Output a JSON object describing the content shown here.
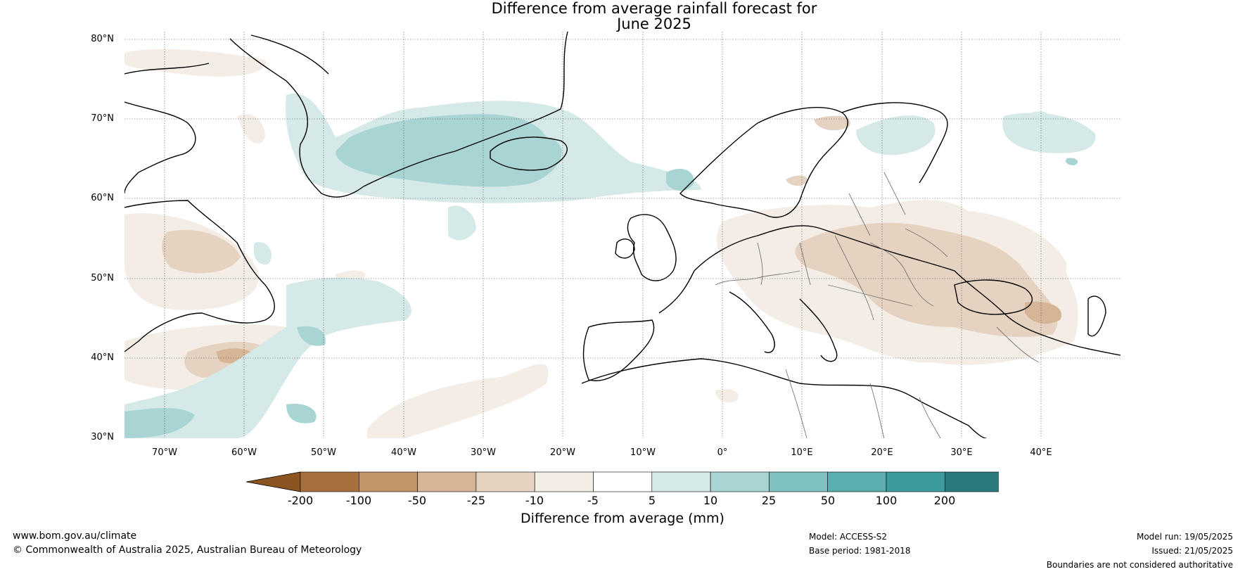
{
  "title_line1": "Difference from average rainfall forecast for",
  "title_line2": "June 2025",
  "lat_labels": [
    "80°N",
    "70°N",
    "60°N",
    "50°N",
    "40°N",
    "30°N"
  ],
  "lon_labels": [
    "70°W",
    "60°W",
    "50°W",
    "40°W",
    "30°W",
    "20°W",
    "10°W",
    "0°",
    "10°E",
    "20°E",
    "30°E",
    "40°E"
  ],
  "colorbar": {
    "title": "Difference from average (mm)",
    "tick_labels": [
      "-200",
      "-100",
      "-50",
      "-25",
      "-10",
      "-5",
      "5",
      "10",
      "25",
      "50",
      "100",
      "200"
    ],
    "colors": [
      "#8c5421",
      "#a8703e",
      "#c2946a",
      "#d6b596",
      "#e5d2c1",
      "#f3ede6",
      "#ffffff",
      "#d5e9e8",
      "#a8d5d4",
      "#80c2c1",
      "#5aaeaf",
      "#3d9b9d",
      "#2a7b7d",
      "#207074"
    ]
  },
  "footer": {
    "website": "www.bom.gov.au/climate",
    "copyright": "© Commonwealth of Australia 2025, Australian Bureau of Meteorology",
    "model": "Model: ACCESS-S2",
    "base_period": "Base period: 1981-2018",
    "model_run": "Model run: 19/05/2025",
    "issued": "Issued: 21/05/2025",
    "disclaimer": "Boundaries are not considered authoritative"
  }
}
